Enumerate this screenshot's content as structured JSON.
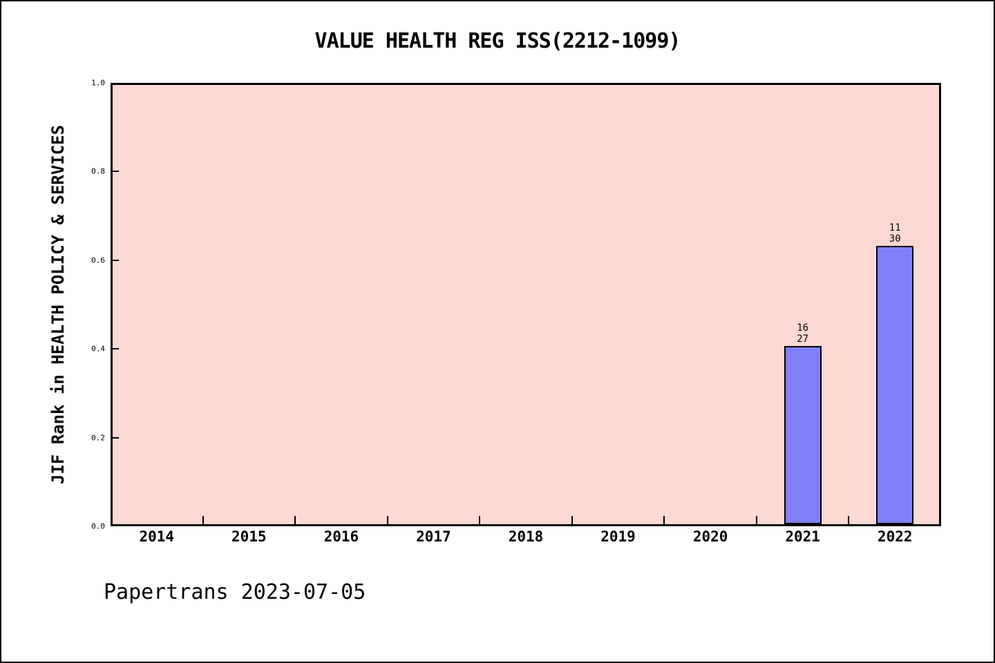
{
  "header": {
    "title": "VALUE HEALTH REG ISS(2212-1099)"
  },
  "footer": {
    "text": "Papertrans 2023-07-05"
  },
  "chart_data": {
    "type": "bar",
    "title": "VALUE HEALTH REG ISS(2212-1099)",
    "ylabel": "JIF Rank in HEALTH POLICY & SERVICES",
    "xlabel": "",
    "categories": [
      "2014",
      "2015",
      "2016",
      "2017",
      "2018",
      "2019",
      "2020",
      "2021",
      "2022"
    ],
    "values": [
      null,
      null,
      null,
      null,
      null,
      null,
      null,
      0.407,
      0.633
    ],
    "annotations": [
      {
        "category": "2021",
        "lines": [
          "16",
          "27"
        ]
      },
      {
        "category": "2022",
        "lines": [
          "11",
          "30"
        ]
      }
    ],
    "ytick_labels": [
      "0.0",
      "0.2",
      "0.4",
      "0.6",
      "0.8",
      "1.0"
    ],
    "ytick_values": [
      0.0,
      0.2,
      0.4,
      0.6,
      0.8,
      1.0
    ],
    "ylim": [
      0.0,
      1.0
    ],
    "grid": false,
    "legend": "none",
    "colors": {
      "bar_fill": "#8080f8",
      "bar_border": "#000000",
      "plot_background": "#fdd9d3",
      "page_background": "#ffffff",
      "text": "#000000"
    }
  }
}
